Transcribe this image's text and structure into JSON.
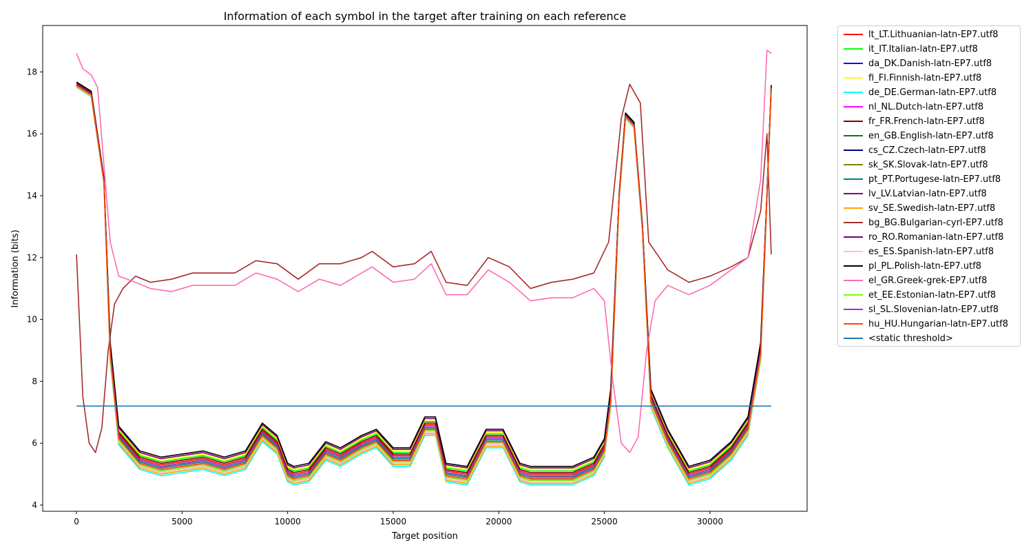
{
  "chart_data": {
    "type": "line",
    "title": "Information of each symbol in the target after training on each reference",
    "xlabel": "Target position",
    "ylabel": "Information (bits)",
    "xlim": [
      -1600,
      34600
    ],
    "ylim": [
      3.8,
      19.5
    ],
    "xticks": [
      0,
      5000,
      10000,
      15000,
      20000,
      25000,
      30000
    ],
    "yticks": [
      4,
      6,
      8,
      10,
      12,
      14,
      16,
      18
    ],
    "grid": false,
    "legend_placement": "outside-right",
    "x": [
      0,
      700,
      1300,
      1600,
      2000,
      3000,
      4000,
      5000,
      6000,
      7000,
      8000,
      8800,
      9500,
      10000,
      10300,
      11000,
      11800,
      12500,
      13500,
      14200,
      15000,
      15800,
      16500,
      17000,
      17500,
      18500,
      19400,
      20200,
      21000,
      21500,
      22300,
      23500,
      24500,
      25000,
      25300,
      25700,
      26000,
      26400,
      26800,
      27200,
      28000,
      29000,
      30000,
      31000,
      31800,
      32400,
      32700,
      32900
    ],
    "common_baseline": [
      17.6,
      17.3,
      14.5,
      9.0,
      6.3,
      5.5,
      5.3,
      5.4,
      5.5,
      5.3,
      5.5,
      6.4,
      6.0,
      5.1,
      5.0,
      5.1,
      5.8,
      5.6,
      6.0,
      6.2,
      5.6,
      5.6,
      6.6,
      6.6,
      5.1,
      5.0,
      6.2,
      6.2,
      5.1,
      5.0,
      5.0,
      5.0,
      5.3,
      5.9,
      7.5,
      14.0,
      16.6,
      16.3,
      13.0,
      7.5,
      6.2,
      5.0,
      5.2,
      5.8,
      6.6,
      9.0,
      14.0,
      17.5
    ],
    "series": [
      {
        "name": "lt_LT.Lithuanian-latn-EP7.utf8",
        "color": "#ff0000",
        "offset": 0.0
      },
      {
        "name": "it_IT.Italian-latn-EP7.utf8",
        "color": "#00ff00",
        "offset": 0.1
      },
      {
        "name": "da_DK.Danish-latn-EP7.utf8",
        "color": "#0000ff",
        "offset": -0.05
      },
      {
        "name": "fi_FI.Finnish-latn-EP7.utf8",
        "color": "#ffff00",
        "offset": 0.15
      },
      {
        "name": "de_DE.German-latn-EP7.utf8",
        "color": "#00ffff",
        "offset": -0.35
      },
      {
        "name": "nl_NL.Dutch-latn-EP7.utf8",
        "color": "#ff00ff",
        "offset": -0.1
      },
      {
        "name": "fr_FR.French-latn-EP7.utf8",
        "color": "#800000",
        "offset": 0.05
      },
      {
        "name": "en_GB.English-latn-EP7.utf8",
        "color": "#008000",
        "offset": -0.05
      },
      {
        "name": "cs_CZ.Czech-latn-EP7.utf8",
        "color": "#000080",
        "offset": -0.15
      },
      {
        "name": "sk_SK.Slovak-latn-EP7.utf8",
        "color": "#808000",
        "offset": -0.25
      },
      {
        "name": "pt_PT.Portugese-latn-EP7.utf8",
        "color": "#008080",
        "offset": -0.1
      },
      {
        "name": "lv_LV.Latvian-latn-EP7.utf8",
        "color": "#800080",
        "offset": 0.2
      },
      {
        "name": "sv_SE.Swedish-latn-EP7.utf8",
        "color": "#ffa500",
        "offset": -0.3
      },
      {
        "name": "bg_BG.Bulgarian-cyrl-EP7.utf8",
        "color": "#a52a2a",
        "profile": "cyrillic"
      },
      {
        "name": "ro_RO.Romanian-latn-EP7.utf8",
        "color": "#6a0080",
        "offset": -0.2
      },
      {
        "name": "es_ES.Spanish-latn-EP7.utf8",
        "color": "#ffc0cb",
        "offset": -0.25
      },
      {
        "name": "pl_PL.Polish-latn-EP7.utf8",
        "color": "#000000",
        "offset": 0.25
      },
      {
        "name": "el_GR.Greek-grek-EP7.utf8",
        "color": "#ff69b4",
        "profile": "greek"
      },
      {
        "name": "et_EE.Estonian-latn-EP7.utf8",
        "color": "#7cfc00",
        "offset": -0.2
      },
      {
        "name": "sl_SL.Slovenian-latn-EP7.utf8",
        "color": "#9932cc",
        "offset": -0.05
      },
      {
        "name": "hu_HU.Hungarian-latn-EP7.utf8",
        "color": "#ff4500",
        "offset": -0.15
      },
      {
        "name": "<static threshold>",
        "color": "#1f77b4",
        "profile": "threshold"
      }
    ],
    "profiles": {
      "cyrillic": {
        "x": [
          0,
          300,
          600,
          900,
          1200,
          1500,
          1800,
          2200,
          2800,
          3500,
          4500,
          5500,
          6500,
          7500,
          8500,
          9500,
          10500,
          11500,
          12500,
          13500,
          14000,
          15000,
          16000,
          16800,
          17500,
          18500,
          19500,
          20500,
          21500,
          22500,
          23500,
          24500,
          25200,
          25800,
          26200,
          26700,
          27100,
          28000,
          29000,
          30000,
          31000,
          31800,
          32400,
          32700,
          32900
        ],
        "y": [
          12.1,
          7.5,
          6.0,
          5.7,
          6.5,
          9.0,
          10.5,
          11.0,
          11.4,
          11.2,
          11.3,
          11.5,
          11.5,
          11.5,
          11.9,
          11.8,
          11.3,
          11.8,
          11.8,
          12.0,
          12.2,
          11.7,
          11.8,
          12.2,
          11.2,
          11.1,
          12.0,
          11.7,
          11.0,
          11.2,
          11.3,
          11.5,
          12.5,
          16.5,
          17.6,
          17.0,
          12.5,
          11.6,
          11.2,
          11.4,
          11.7,
          12.0,
          13.5,
          16.0,
          12.1
        ]
      },
      "greek": {
        "x": [
          0,
          300,
          700,
          1000,
          1300,
          1600,
          2000,
          2800,
          3500,
          4500,
          5500,
          6500,
          7500,
          8500,
          9500,
          10500,
          11500,
          12500,
          13500,
          14000,
          15000,
          16000,
          16800,
          17500,
          18500,
          19500,
          20500,
          21500,
          22500,
          23500,
          24500,
          25000,
          25400,
          25800,
          26200,
          26600,
          27000,
          27400,
          28000,
          29000,
          30000,
          31000,
          31800,
          32400,
          32700,
          32900
        ],
        "y": [
          18.6,
          18.1,
          17.9,
          17.5,
          15.0,
          12.5,
          11.4,
          11.2,
          11.0,
          10.9,
          11.1,
          11.1,
          11.1,
          11.5,
          11.3,
          10.9,
          11.3,
          11.1,
          11.5,
          11.7,
          11.2,
          11.3,
          11.8,
          10.8,
          10.8,
          11.6,
          11.2,
          10.6,
          10.7,
          10.7,
          11.0,
          10.6,
          8.0,
          6.0,
          5.7,
          6.2,
          9.0,
          10.6,
          11.1,
          10.8,
          11.1,
          11.6,
          12.0,
          14.5,
          18.7,
          18.6
        ]
      },
      "threshold": {
        "x": [
          0,
          32900
        ],
        "y": [
          7.2,
          7.2
        ]
      }
    }
  }
}
